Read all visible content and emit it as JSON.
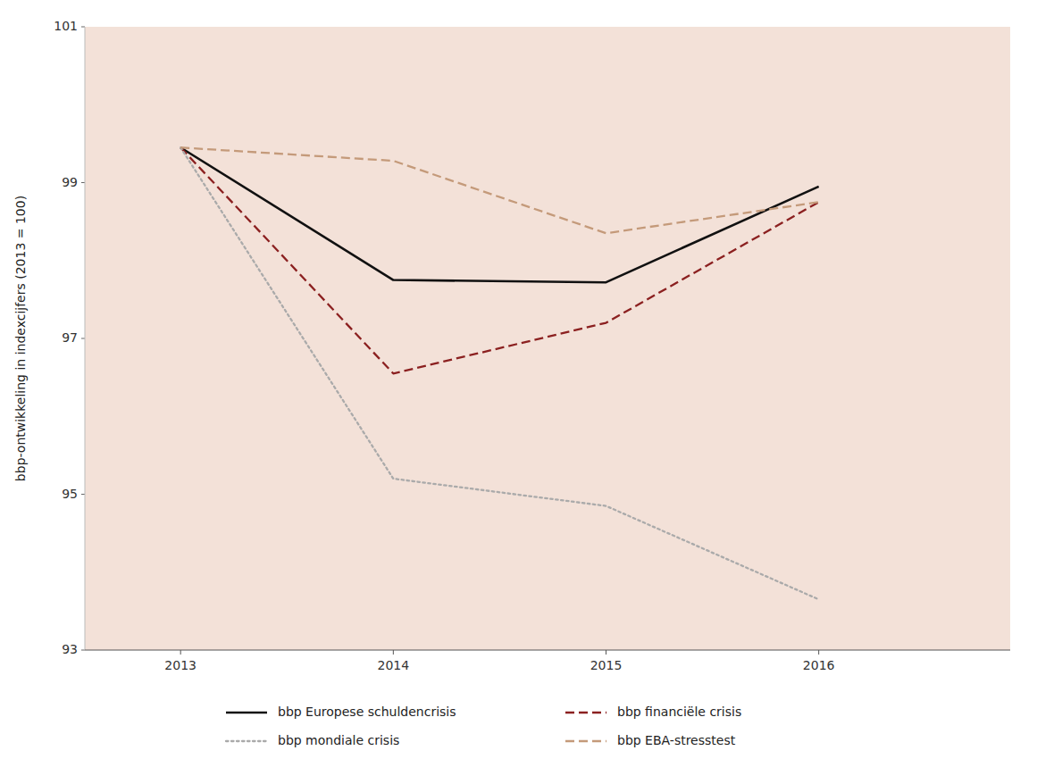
{
  "chart_data": {
    "type": "line",
    "y_label": "bbp-ontwikkeling in indexcijfers (2013 = 100)",
    "x": [
      2013,
      2014,
      2015,
      2016
    ],
    "series": [
      {
        "name": "bbp Europese schuldencrisis",
        "color": "#111111",
        "line_style": "solid",
        "values": [
          99.45,
          97.75,
          97.72,
          98.95
        ]
      },
      {
        "name": "bbp financiële crisis",
        "color": "#8B2020",
        "line_style": "dashed",
        "values": [
          99.45,
          96.55,
          97.2,
          98.75
        ]
      },
      {
        "name": "bbp mondiale crisis",
        "color": "#AAAAAA",
        "line_style": "dotted",
        "values": [
          99.45,
          95.2,
          94.85,
          93.65
        ]
      },
      {
        "name": "bbp EBA-stresstest",
        "color": "#C49A7A",
        "line_style": "dashed",
        "values": [
          99.45,
          99.28,
          98.35,
          98.75
        ]
      }
    ],
    "xlim": [
      2012.55,
      2016.9
    ],
    "xticks": [
      2013,
      2014,
      2015,
      2016
    ],
    "ylim": [
      93,
      101
    ],
    "yticks": [
      93,
      95,
      97,
      99,
      101
    ],
    "grid": false,
    "legend": "bottom"
  }
}
